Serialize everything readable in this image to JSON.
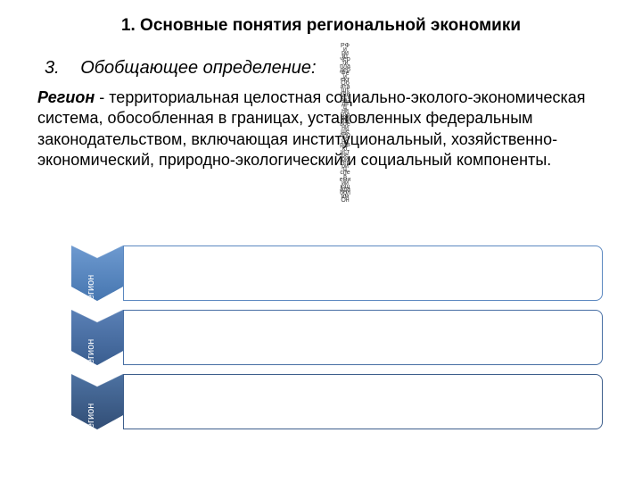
{
  "title": "1. Основные понятия региональной экономики",
  "subtitle_num": "3.",
  "subtitle_text": "Обобщающее определение:",
  "term": "Регион",
  "definition": "- территориальная целостная социально-эколого-экономическая система, обособленная в границах, установленных федеральным законодательством, включающая институциональный, хозяйственно-экономический, природно-экологический и социальный компоненты.",
  "vertical_rows": [
    "РФ",
    "и",
    "ри",
    "ит",
    "чер",
    "ти",
    "пла",
    "дер",
    "Фе",
    "и",
    "ект",
    "Об",
    "ата",
    "шт",
    "кой",
    "ест",
    "на-",
    "дв",
    "ц",
    "ни",
    "гра",
    "ом",
    "им",
    "вое",
    "ни",
    "ще",
    "ано",
    "ле",
    "но",
    "рав",
    "кт",
    "уст",
    "ое",
    "ри",
    "тер",
    "ри",
    "ц",
    "спе",
    "в",
    "еми",
    "ии",
    "ющ",
    "ада",
    "бол",
    "им",
    "Он"
  ],
  "chevrons": [
    {
      "label": "Регион",
      "fill": "#5b88c0",
      "border": "#5b88c0",
      "gradient": [
        "#6e9ad0",
        "#4676b0"
      ]
    },
    {
      "label": "Регион",
      "fill": "#486fa4",
      "border": "#486fa4",
      "gradient": [
        "#5a80b6",
        "#3a5e90"
      ]
    },
    {
      "label": "Регион",
      "fill": "#3e5f8c",
      "border": "#3e5f8c",
      "gradient": [
        "#4d72a2",
        "#324e76"
      ]
    }
  ]
}
